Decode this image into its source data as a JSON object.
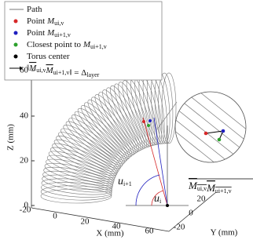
{
  "legend": [
    {
      "prefix": "Path"
    },
    {
      "prefix": "Point",
      "symbol": "M",
      "sub": "ui,v",
      "color": "#d62728"
    },
    {
      "prefix": "Point",
      "symbol": "M",
      "sub": "ui+1,v",
      "color": "#1f1fbf"
    },
    {
      "prefix": "Closest point to",
      "symbol": "M",
      "sub": "ui+1,v",
      "color": "#2ca02c"
    },
    {
      "prefix": "Torus center",
      "color": "#000000"
    },
    {
      "left": "M",
      "left_sub": "ui,v",
      "right": "M",
      "right_sub": "ui+1,v",
      "eq": "=",
      "rhs": "Δ",
      "rhs_sub": "layer"
    }
  ],
  "axes": {
    "x": {
      "label": "X (mm)",
      "ticks": [
        -20,
        0,
        20,
        40,
        60
      ]
    },
    "y": {
      "label": "Y (mm)",
      "ticks": [
        -20,
        0,
        20
      ]
    },
    "z": {
      "label": "Z (mm)",
      "ticks": [
        0,
        20,
        40,
        60
      ]
    }
  },
  "angles": [
    {
      "symbol": "u",
      "sub": "i+1"
    },
    {
      "symbol": "u",
      "sub": "i"
    }
  ],
  "segment_label": {
    "left": "M",
    "left_sub": "ui,v",
    "right": "M",
    "right_sub": "ui+1,v"
  }
}
